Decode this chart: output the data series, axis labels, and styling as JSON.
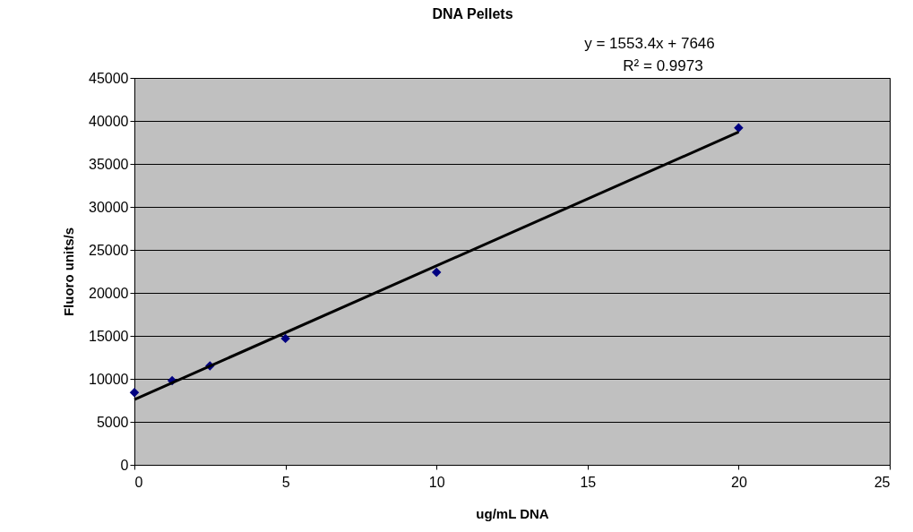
{
  "chart_data": {
    "type": "scatter",
    "title": "DNA Pellets",
    "xlabel": "ug/mL DNA",
    "ylabel": "Fluoro units/s",
    "annotations": [
      "y = 1553.4x + 7646",
      "R² = 0.9973"
    ],
    "series": [
      {
        "color": "#000080",
        "marker": "diamond",
        "x": [
          0,
          1.25,
          2.5,
          5,
          10,
          20
        ],
        "values": [
          8400,
          9800,
          11500,
          14700,
          22400,
          39200
        ]
      },
      {
        "type": "line",
        "color": "#000000",
        "line_style": "solid",
        "x": [
          0,
          20
        ],
        "values": [
          7600,
          38700
        ]
      }
    ],
    "xlim": [
      0,
      25
    ],
    "xticks": [
      0,
      5,
      10,
      15,
      20,
      25
    ],
    "ylim": [
      0,
      45000
    ],
    "yticks": [
      0,
      5000,
      10000,
      15000,
      20000,
      25000,
      30000,
      35000,
      40000,
      45000
    ],
    "grid": "y"
  }
}
